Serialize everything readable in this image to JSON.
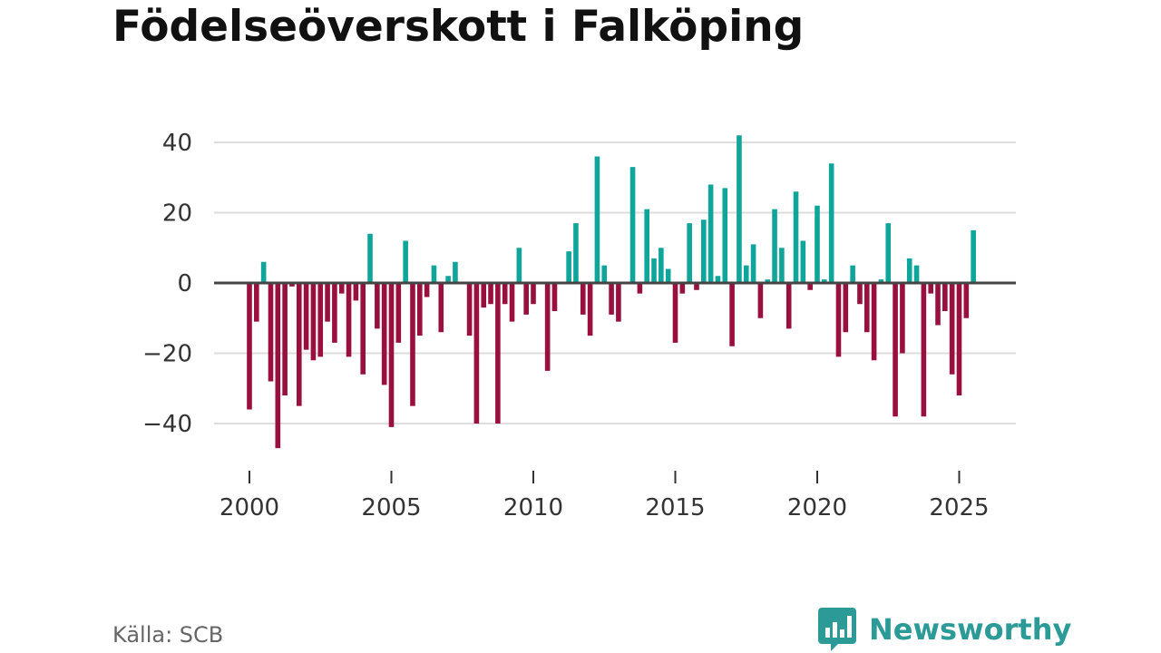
{
  "title": "Födelseöverskott i Falköping",
  "source": "Källa: SCB",
  "brand": {
    "name": "Newsworthy",
    "logo_icon": "bar-chart-speech-bubble-icon",
    "color": "#2c9a97"
  },
  "chart_data": {
    "type": "bar",
    "title": "Födelseöverskott i Falköping",
    "xlabel": "",
    "ylabel": "",
    "frequency": "quarterly",
    "x_start": 2000.0,
    "x_step": 0.25,
    "xlim": [
      1998.75,
      2027.25
    ],
    "ylim": [
      -52,
      50
    ],
    "yticks": [
      40,
      20,
      0,
      -20,
      -40
    ],
    "ytick_labels": [
      "40",
      "20",
      "0",
      "−20",
      "−40"
    ],
    "xticks": [
      2000,
      2005,
      2010,
      2015,
      2020,
      2025
    ],
    "xtick_labels": [
      "2000",
      "2005",
      "2010",
      "2015",
      "2020",
      "2025"
    ],
    "grid": true,
    "colors": {
      "positive": "#0fa59b",
      "negative": "#990f3d",
      "gridline": "#dddddd",
      "zeroline": "#444444"
    },
    "values": [
      -36,
      -11,
      6,
      -28,
      -47,
      -32,
      -1,
      -35,
      -19,
      -22,
      -21,
      -11,
      -17,
      -3,
      -21,
      -5,
      -26,
      14,
      -13,
      -29,
      -41,
      -17,
      12,
      -35,
      -15,
      -4,
      5,
      -14,
      2,
      6,
      0,
      -15,
      -40,
      -7,
      -6,
      -40,
      -6,
      -11,
      10,
      -9,
      -6,
      0,
      -25,
      -8,
      0,
      9,
      17,
      -9,
      -15,
      36,
      5,
      -9,
      -11,
      0,
      33,
      -3,
      21,
      7,
      10,
      4,
      -17,
      -3,
      17,
      -2,
      18,
      28,
      2,
      27,
      -18,
      42,
      5,
      11,
      -10,
      1,
      21,
      10,
      -13,
      26,
      12,
      -2,
      22,
      1,
      34,
      -21,
      -14,
      5,
      -6,
      -14,
      -22,
      1,
      17,
      -38,
      -20,
      7,
      5,
      -38,
      -3,
      -12,
      -8,
      -26,
      -32,
      -10,
      15
    ]
  }
}
